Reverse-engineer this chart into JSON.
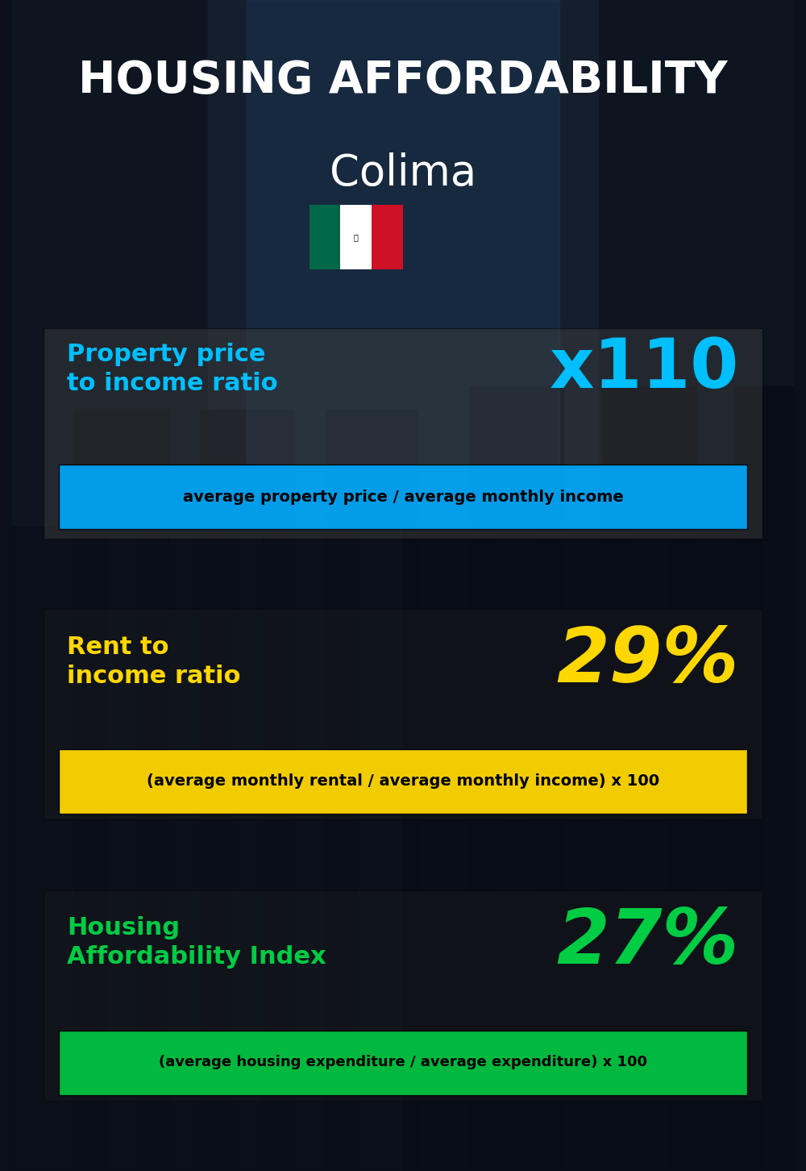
{
  "title_line1": "HOUSING AFFORDABILITY",
  "title_line2": "Colima",
  "bg_color": "#0a0f1a",
  "section1_label": "Property price\nto income ratio",
  "section1_value": "x110",
  "section1_label_color": "#00bfff",
  "section1_value_color": "#00bfff",
  "section1_banner_text": "average property price / average monthly income",
  "section1_banner_bg": "#00aaff",
  "section1_banner_text_color": "#000000",
  "section2_label": "Rent to\nincome ratio",
  "section2_value": "29%",
  "section2_label_color": "#FFD700",
  "section2_value_color": "#FFD700",
  "section2_banner_text": "(average monthly rental / average monthly income) x 100",
  "section2_banner_bg": "#FFD700",
  "section2_banner_text_color": "#000000",
  "section3_label": "Housing\nAffordability Index",
  "section3_value": "27%",
  "section3_label_color": "#00cc44",
  "section3_value_color": "#00cc44",
  "section3_banner_text": "(average housing expenditure / average expenditure) x 100",
  "section3_banner_bg": "#00cc44",
  "section3_banner_text_color": "#000000",
  "flag_green": "#006847",
  "flag_white": "#FFFFFF",
  "flag_red": "#CE1126"
}
